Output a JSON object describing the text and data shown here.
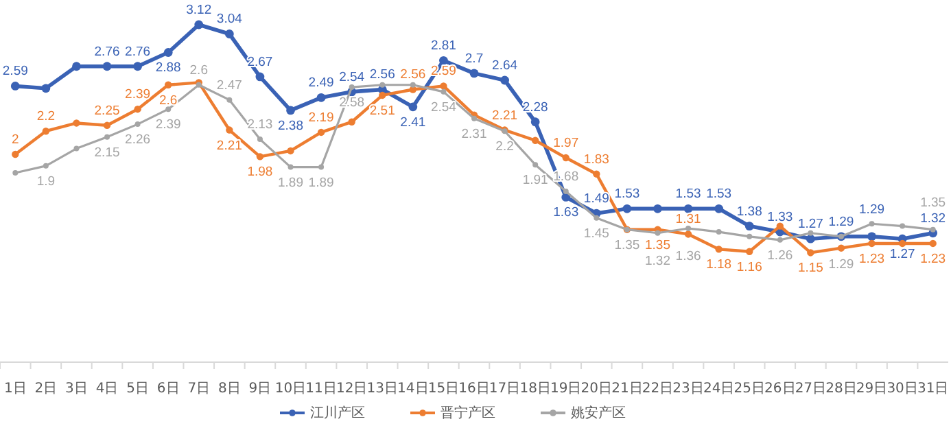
{
  "chart_data": {
    "type": "line",
    "categories": [
      "1日",
      "2日",
      "3日",
      "4日",
      "5日",
      "6日",
      "7日",
      "8日",
      "9日",
      "10日",
      "11日",
      "12日",
      "13日",
      "14日",
      "15日",
      "16日",
      "17日",
      "18日",
      "19日",
      "20日",
      "21日",
      "22日",
      "23日",
      "24日",
      "25日",
      "26日",
      "27日",
      "28日",
      "29日",
      "30日",
      "31日"
    ],
    "marker": "circle",
    "legend": "bottom",
    "grid": false,
    "series": [
      {
        "name": "江川产区",
        "color": "#3a62b5",
        "values": [
          2.59,
          2.57,
          2.76,
          2.76,
          2.76,
          2.88,
          3.12,
          3.04,
          2.67,
          2.38,
          2.49,
          2.54,
          2.56,
          2.41,
          2.81,
          2.7,
          2.64,
          2.28,
          1.63,
          1.49,
          1.53,
          1.53,
          1.53,
          1.53,
          1.38,
          1.33,
          1.27,
          1.29,
          1.29,
          1.27,
          1.32
        ],
        "value_labels": [
          "2.59",
          null,
          null,
          "2.76",
          "2.76",
          "2.88",
          "3.12",
          "3.04",
          "2.67",
          "2.38",
          "2.49",
          "2.54",
          "2.56",
          "2.41",
          "2.81",
          "2.7",
          "2.64",
          "2.28",
          "1.63",
          "1.49",
          "1.53",
          null,
          "1.53",
          "1.53",
          "1.38",
          "1.33",
          "1.27",
          "1.29",
          "1.29",
          "1.27",
          "1.32"
        ]
      },
      {
        "name": "晋宁产区",
        "color": "#ed7d31",
        "values": [
          2,
          2.2,
          2.27,
          2.25,
          2.39,
          2.6,
          2.62,
          2.21,
          1.98,
          2.03,
          2.19,
          2.28,
          2.51,
          2.56,
          2.59,
          2.34,
          2.21,
          2.12,
          1.97,
          1.83,
          1.35,
          1.35,
          1.31,
          1.18,
          1.16,
          1.38,
          1.15,
          1.19,
          1.23,
          1.23,
          1.23
        ],
        "value_labels": [
          "2",
          "2.2",
          null,
          "2.25",
          "2.39",
          "2.6",
          null,
          "2.21",
          "1.98",
          null,
          "2.19",
          null,
          "2.51",
          "2.56",
          "2.59",
          null,
          "2.21",
          null,
          "1.97",
          "1.83",
          null,
          "1.35",
          "1.31",
          "1.18",
          "1.16",
          null,
          "1.15",
          null,
          "1.23",
          null,
          "1.23"
        ]
      },
      {
        "name": "姚安产区",
        "color": "#a5a5a5",
        "values": [
          1.84,
          1.9,
          2.05,
          2.15,
          2.26,
          2.39,
          2.6,
          2.47,
          2.13,
          1.89,
          1.89,
          2.58,
          2.6,
          2.6,
          2.54,
          2.31,
          2.2,
          1.91,
          1.68,
          1.45,
          1.35,
          1.32,
          1.36,
          1.33,
          1.29,
          1.26,
          1.32,
          1.29,
          1.4,
          1.38,
          1.35
        ],
        "value_labels": [
          null,
          "1.9",
          null,
          "2.15",
          "2.26",
          "2.39",
          "2.6",
          "2.47",
          "2.13",
          "1.89",
          "1.89",
          "2.58",
          null,
          null,
          "2.54",
          "2.31",
          "2.2",
          "1.91",
          "1.68",
          "1.45",
          "1.35",
          "1.32",
          "1.36",
          null,
          null,
          "1.26",
          null,
          "1.29",
          null,
          null,
          "1.35"
        ]
      }
    ]
  }
}
